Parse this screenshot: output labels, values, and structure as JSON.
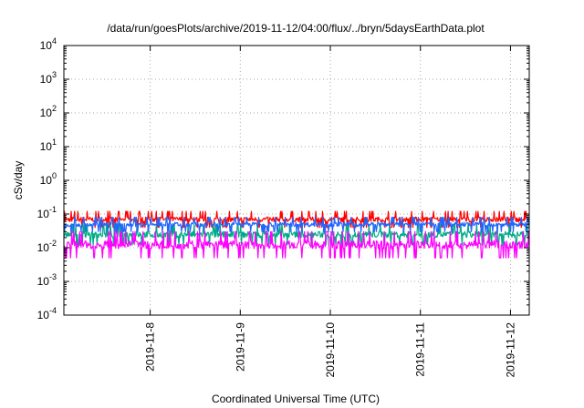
{
  "chart_data": {
    "type": "line",
    "title": "/data/run/goesPlots/archive/2019-11-12/04:00/flux/../bryn/5daysEarthData.plot",
    "xlabel": "Coordinated Universal Time (UTC)",
    "ylabel": "cSv/day",
    "yscale": "log",
    "ylim": [
      0.0001,
      10000
    ],
    "xlim": [
      "2019-11-07T01:00",
      "2019-11-12T05:00"
    ],
    "grid": true,
    "x_ticks": [
      {
        "label": "2019-11-8",
        "date": "2019-11-08"
      },
      {
        "label": "2019-11-9",
        "date": "2019-11-09"
      },
      {
        "label": "2019-11-10",
        "date": "2019-11-10"
      },
      {
        "label": "2019-11-11",
        "date": "2019-11-11"
      },
      {
        "label": "2019-11-12",
        "date": "2019-11-12"
      }
    ],
    "y_ticks": [
      {
        "base": "10",
        "exp": "-4",
        "value": 0.0001
      },
      {
        "base": "10",
        "exp": "-3",
        "value": 0.001
      },
      {
        "base": "10",
        "exp": "-2",
        "value": 0.01
      },
      {
        "base": "10",
        "exp": "-1",
        "value": 0.1
      },
      {
        "base": "10",
        "exp": "0",
        "value": 1
      },
      {
        "base": "10",
        "exp": "1",
        "value": 10
      },
      {
        "base": "10",
        "exp": "2",
        "value": 100
      },
      {
        "base": "10",
        "exp": "3",
        "value": 1000
      },
      {
        "base": "10",
        "exp": "4",
        "value": 10000
      }
    ],
    "series": [
      {
        "color": "#ff0000",
        "low": 0.04,
        "high": 0.12
      },
      {
        "color": "#00aa88",
        "low": 0.012,
        "high": 0.05
      },
      {
        "color": "#2266ff",
        "low": 0.03,
        "high": 0.08
      },
      {
        "color": "#ff00ff",
        "low": 0.005,
        "high": 0.03
      }
    ]
  }
}
